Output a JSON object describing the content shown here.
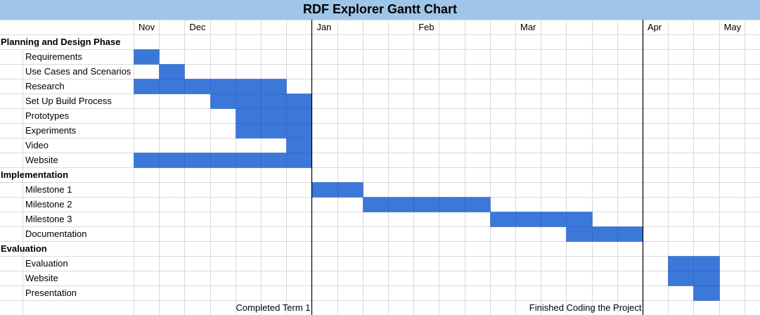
{
  "title": "RDF Explorer Gantt Chart",
  "chart_data": {
    "type": "gantt",
    "title": "RDF Explorer Gantt Chart",
    "unit": "week",
    "weeks": 25,
    "months": [
      {
        "label": "Nov",
        "start_week": 0
      },
      {
        "label": "Dec",
        "start_week": 2
      },
      {
        "label": "Jan",
        "start_week": 7
      },
      {
        "label": "Feb",
        "start_week": 11
      },
      {
        "label": "Mar",
        "start_week": 15
      },
      {
        "label": "Apr",
        "start_week": 20
      },
      {
        "label": "May",
        "start_week": 23
      }
    ],
    "rows": [
      {
        "label": "Planning and Design Phase",
        "header": true
      },
      {
        "label": "Requirements",
        "start": 0,
        "end": 1
      },
      {
        "label": "Use Cases and Scenarios",
        "start": 1,
        "end": 2
      },
      {
        "label": "Research",
        "start": 0,
        "end": 6
      },
      {
        "label": "Set Up Build Process",
        "start": 3,
        "end": 7
      },
      {
        "label": "Prototypes",
        "start": 4,
        "end": 7
      },
      {
        "label": "Experiments",
        "start": 4,
        "end": 7
      },
      {
        "label": "Video",
        "start": 6,
        "end": 7
      },
      {
        "label": "Website",
        "start": 0,
        "end": 7
      },
      {
        "label": "Implementation",
        "header": true
      },
      {
        "label": "Milestone 1",
        "start": 7,
        "end": 9
      },
      {
        "label": "Milestone 2",
        "start": 9,
        "end": 14
      },
      {
        "label": "Milestone 3",
        "start": 14,
        "end": 18
      },
      {
        "label": "Documentation",
        "start": 17,
        "end": 20
      },
      {
        "label": "Evaluation",
        "header": true
      },
      {
        "label": "Evaluation",
        "start": 21,
        "end": 23
      },
      {
        "label": "Website",
        "start": 21,
        "end": 23
      },
      {
        "label": "Presentation",
        "start": 22,
        "end": 23
      }
    ],
    "milestones": [
      {
        "label": "Completed Term 1",
        "week": 7
      },
      {
        "label": "Finished Coding the Project",
        "week": 20
      }
    ],
    "bar_color": "#3c78d8",
    "title_bg": "#9fc5e8",
    "grid": true
  }
}
